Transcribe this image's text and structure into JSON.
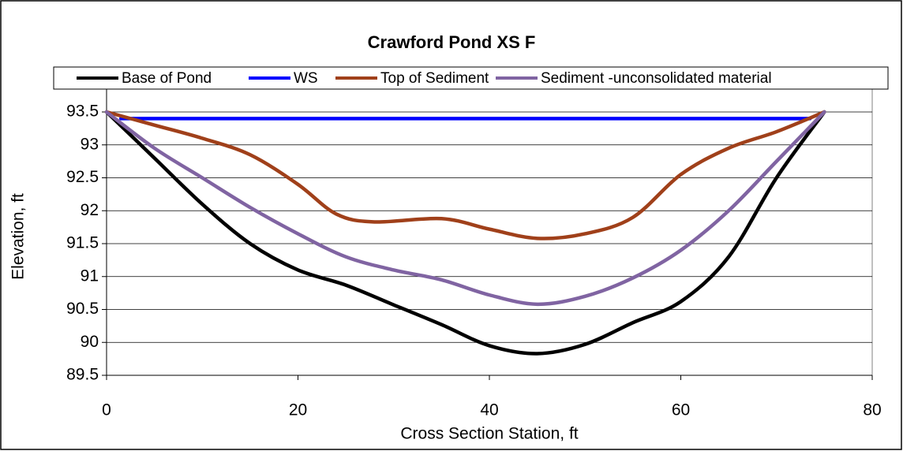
{
  "chart_data": {
    "type": "line",
    "title": "Crawford Pond XS F",
    "xlabel": "Cross Section Station, ft",
    "ylabel": "Elevation, ft",
    "xlim": [
      0,
      80
    ],
    "xticks": [
      0,
      20,
      40,
      60,
      80
    ],
    "ylim": [
      89.5,
      93.5
    ],
    "yticks": [
      89.5,
      90,
      90.5,
      91,
      91.5,
      92,
      92.5,
      93,
      93.5
    ],
    "grid": true,
    "legend": "top",
    "series": [
      {
        "name": "Base of Pond",
        "color": "#000000",
        "x": [
          0,
          5,
          10,
          15,
          20,
          25,
          30,
          35,
          40,
          45,
          50,
          55,
          60,
          65,
          70,
          75
        ],
        "values": [
          93.5,
          92.8,
          92.1,
          91.5,
          91.1,
          90.87,
          90.57,
          90.27,
          89.95,
          89.83,
          89.97,
          90.3,
          90.62,
          91.3,
          92.5,
          93.5
        ]
      },
      {
        "name": "WS",
        "color": "#0000ff",
        "x": [
          1.5,
          73.5
        ],
        "values": [
          93.4,
          93.4
        ]
      },
      {
        "name": "Top of Sediment",
        "color": "#a0401a",
        "x": [
          0,
          5,
          10,
          15,
          20,
          24,
          28,
          35,
          40,
          45,
          50,
          55,
          60,
          65,
          70,
          75
        ],
        "values": [
          93.5,
          93.3,
          93.1,
          92.85,
          92.4,
          91.95,
          91.83,
          91.88,
          91.72,
          91.58,
          91.65,
          91.9,
          92.55,
          92.95,
          93.2,
          93.5
        ]
      },
      {
        "name": "Sediment -unconsolidated material",
        "color": "#8064a2",
        "x": [
          0,
          5,
          10,
          15,
          20,
          25,
          30,
          35,
          40,
          45,
          50,
          55,
          60,
          65,
          70,
          75
        ],
        "values": [
          93.5,
          92.95,
          92.5,
          92.05,
          91.65,
          91.3,
          91.1,
          90.95,
          90.72,
          90.58,
          90.7,
          90.98,
          91.4,
          92.0,
          92.75,
          93.5
        ]
      }
    ]
  }
}
